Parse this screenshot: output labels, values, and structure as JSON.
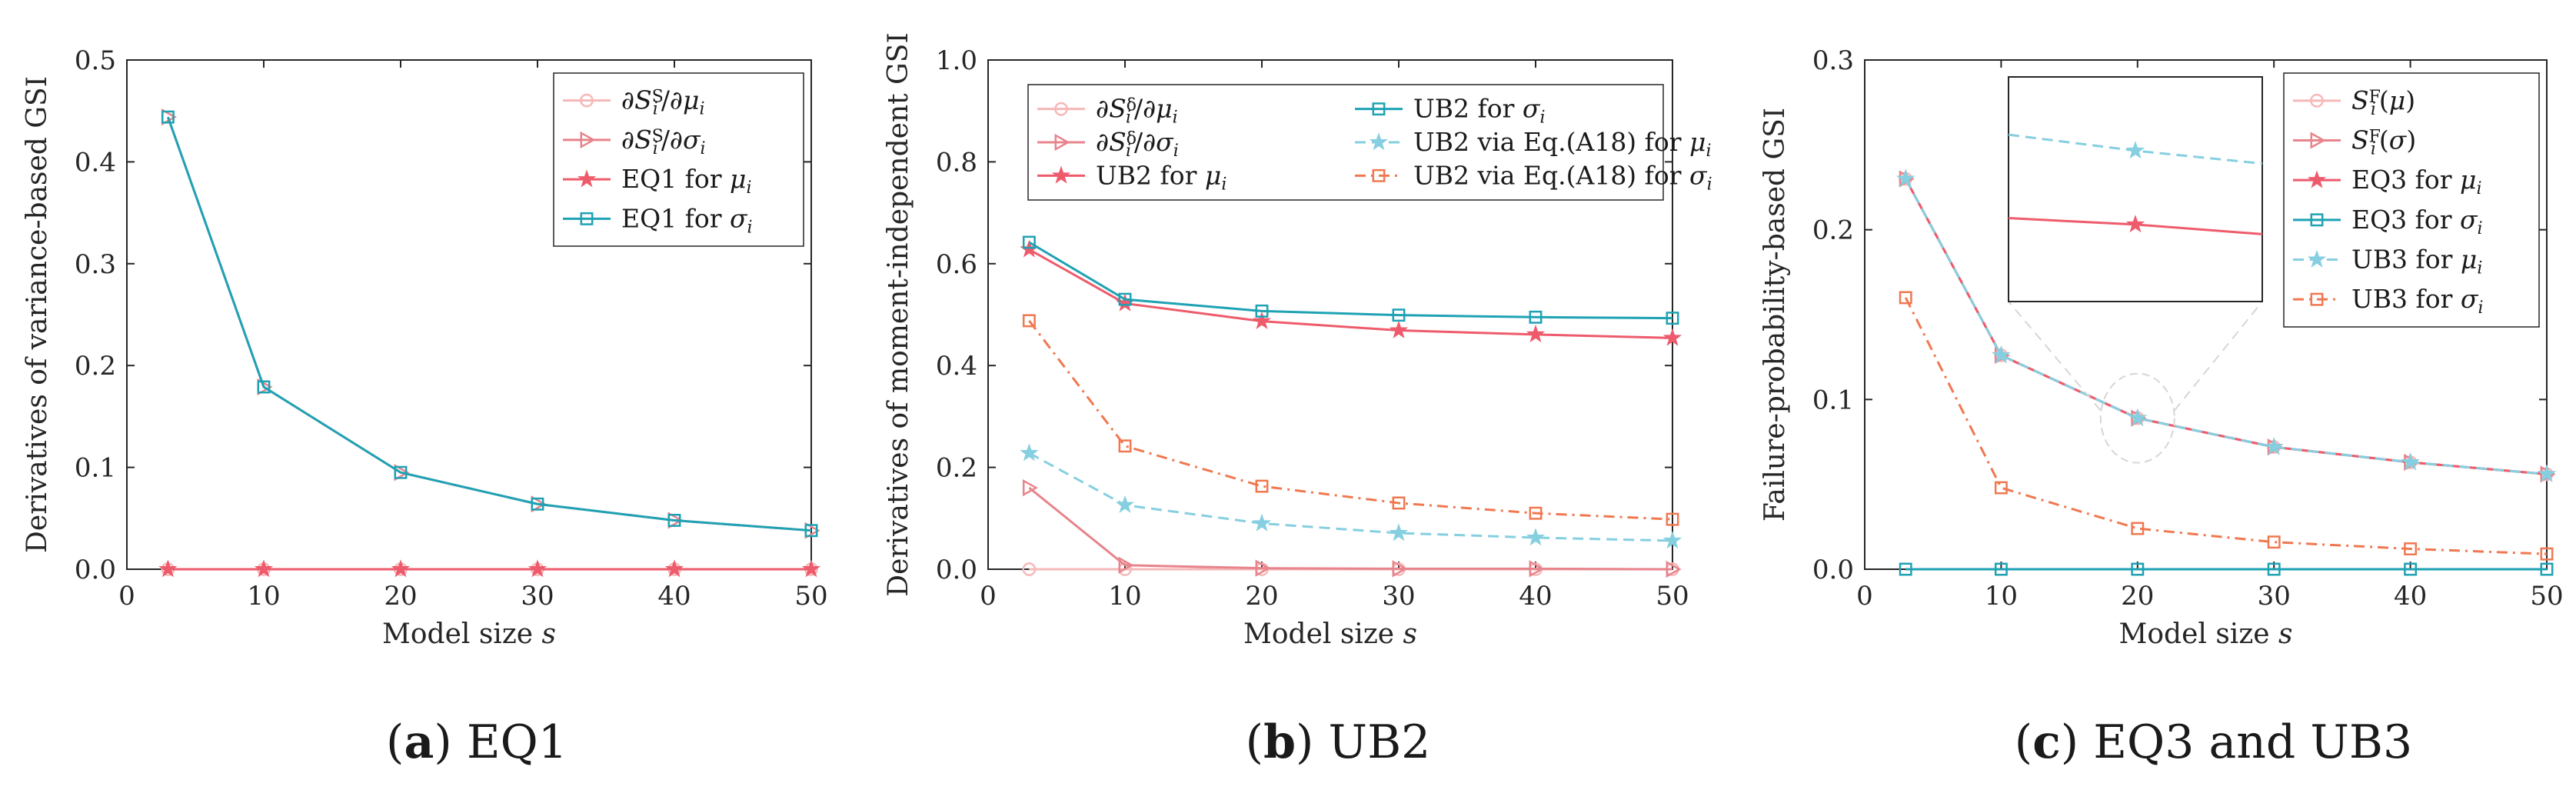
{
  "chart_data": [
    {
      "type": "line",
      "caption_letter": "a",
      "caption_text": "EQ1",
      "xlabel": "Model size s",
      "ylabel": "Derivatives of variance-based GSI",
      "xlim": [
        0,
        50
      ],
      "ylim": [
        0,
        0.5
      ],
      "xticks": [
        "0",
        "10",
        "20",
        "30",
        "40",
        "50"
      ],
      "yticks": [
        "0.0",
        "0.1",
        "0.2",
        "0.3",
        "0.4",
        "0.5"
      ],
      "x": [
        3,
        10,
        20,
        30,
        40,
        50
      ],
      "legend_position": "top-right",
      "series": [
        {
          "name": "∂S_i^S/∂μ_i",
          "values": [
            0,
            0,
            0,
            0,
            0,
            0
          ],
          "color": "#f6b8b8",
          "dash": "solid",
          "marker": "circle"
        },
        {
          "name": "∂S_i^S/∂σ_i",
          "values": [
            0.444,
            0.179,
            0.095,
            0.064,
            0.048,
            0.038
          ],
          "color": "#e7848c",
          "dash": "solid",
          "marker": "triangle"
        },
        {
          "name": "EQ1 for μ_i",
          "values": [
            0,
            0,
            0,
            0,
            0,
            0
          ],
          "color": "#ee5b6c",
          "dash": "solid",
          "marker": "star"
        },
        {
          "name": "EQ1 for σ_i",
          "values": [
            0.444,
            0.179,
            0.095,
            0.064,
            0.048,
            0.038
          ],
          "color": "#1ea2b4",
          "dash": "solid",
          "marker": "square"
        }
      ]
    },
    {
      "type": "line",
      "caption_letter": "b",
      "caption_text": "UB2",
      "xlabel": "Model size s",
      "ylabel": "Derivatives of moment-independent GSI",
      "xlim": [
        0,
        50
      ],
      "ylim": [
        0,
        1.0
      ],
      "xticks": [
        "0",
        "10",
        "20",
        "30",
        "40",
        "50"
      ],
      "yticks": [
        "0.0",
        "0.2",
        "0.4",
        "0.6",
        "0.8",
        "1.0"
      ],
      "x": [
        3,
        10,
        20,
        30,
        40,
        50
      ],
      "legend_position": "top (two columns)",
      "series": [
        {
          "name": "∂S_i^δ/∂μ_i",
          "values": [
            0,
            0,
            0,
            0,
            0,
            0
          ],
          "color": "#f6b8b8",
          "dash": "solid",
          "marker": "circle"
        },
        {
          "name": "∂S_i^δ/∂σ_i",
          "values": [
            0.16,
            0.008,
            0.002,
            0.001,
            0.001,
            0.0
          ],
          "color": "#e7848c",
          "dash": "solid",
          "marker": "triangle"
        },
        {
          "name": "UB2 for μ_i",
          "values": [
            0.628,
            0.522,
            0.487,
            0.469,
            0.461,
            0.454
          ],
          "color": "#ee5b6c",
          "dash": "solid",
          "marker": "star"
        },
        {
          "name": "UB2 for σ_i",
          "values": [
            0.642,
            0.53,
            0.507,
            0.499,
            0.495,
            0.493
          ],
          "color": "#1ea2b4",
          "dash": "solid",
          "marker": "square"
        },
        {
          "name": "UB2 via Eq.(A18) for μ_i",
          "values": [
            0.228,
            0.126,
            0.09,
            0.071,
            0.062,
            0.056
          ],
          "color": "#86cfe0",
          "dash": "dashed",
          "marker": "star"
        },
        {
          "name": "UB2 via Eq.(A18) for σ_i",
          "values": [
            0.488,
            0.242,
            0.163,
            0.13,
            0.11,
            0.098
          ],
          "color": "#f07850",
          "dash": "dashdot",
          "marker": "square"
        }
      ]
    },
    {
      "type": "line",
      "caption_letter": "c",
      "caption_text": "EQ3 and UB3",
      "xlabel": "Model size s",
      "ylabel": "Failure-probability-based GSI",
      "xlim": [
        0,
        50
      ],
      "ylim": [
        0,
        0.3
      ],
      "xticks": [
        "0",
        "10",
        "20",
        "30",
        "40",
        "50"
      ],
      "yticks": [
        "0.0",
        "0.1",
        "0.2",
        "0.3"
      ],
      "x": [
        3,
        10,
        20,
        30,
        40,
        50
      ],
      "legend_position": "top-right",
      "inset": "magnified view around s = 20",
      "series": [
        {
          "name": "S_i^F(μ)",
          "values": [
            0.23,
            0.126,
            0.089,
            0.072,
            0.063,
            0.056
          ],
          "color": "#f6b8b8",
          "dash": "solid",
          "marker": "circle"
        },
        {
          "name": "S_i^F(σ)",
          "values": [
            0.23,
            0.126,
            0.089,
            0.072,
            0.063,
            0.056
          ],
          "color": "#e7848c",
          "dash": "solid",
          "marker": "triangle"
        },
        {
          "name": "EQ3 for μ_i",
          "values": [
            0.23,
            0.126,
            0.089,
            0.072,
            0.063,
            0.056
          ],
          "color": "#ee5b6c",
          "dash": "solid",
          "marker": "star"
        },
        {
          "name": "EQ3 for σ_i",
          "values": [
            0,
            0,
            0,
            0,
            0,
            0
          ],
          "color": "#1ea2b4",
          "dash": "solid",
          "marker": "square"
        },
        {
          "name": "UB3 for μ_i",
          "values": [
            0.23,
            0.126,
            0.089,
            0.072,
            0.063,
            0.056
          ],
          "color": "#86cfe0",
          "dash": "dashed",
          "marker": "star"
        },
        {
          "name": "UB3 for σ_i",
          "values": [
            0.16,
            0.048,
            0.024,
            0.016,
            0.012,
            0.009
          ],
          "color": "#f07850",
          "dash": "dashdot",
          "marker": "square"
        }
      ]
    }
  ]
}
